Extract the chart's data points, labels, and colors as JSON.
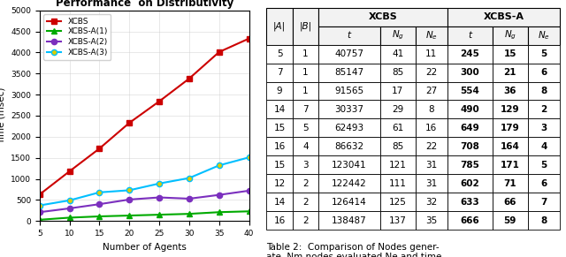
{
  "chart_title": "Performance  on Distributivity",
  "xlabel": "Number of Agents",
  "ylabel": "Time (msec)",
  "xlim": [
    5,
    40
  ],
  "ylim": [
    0,
    5000
  ],
  "yticks": [
    0,
    500,
    1000,
    1500,
    2000,
    2500,
    3000,
    3500,
    4000,
    4500,
    5000
  ],
  "xticks": [
    5,
    10,
    15,
    20,
    25,
    30,
    35,
    40
  ],
  "series": [
    {
      "label": "XCBS",
      "color": "#cc0000",
      "marker": "s",
      "markerfacecolor": "#cc0000",
      "x": [
        5,
        10,
        15,
        20,
        25,
        30,
        35,
        40
      ],
      "y": [
        630,
        1180,
        1720,
        2330,
        2840,
        3380,
        4010,
        4330
      ]
    },
    {
      "label": "XCBS-A(1)",
      "color": "#00aa00",
      "marker": "^",
      "markerfacecolor": "#00aa00",
      "x": [
        5,
        10,
        15,
        20,
        25,
        30,
        35,
        40
      ],
      "y": [
        30,
        80,
        110,
        130,
        150,
        170,
        210,
        230
      ]
    },
    {
      "label": "XCBS-A(2)",
      "color": "#7B2FBE",
      "marker": "o",
      "markerfacecolor": "#7B2FBE",
      "x": [
        5,
        10,
        15,
        20,
        25,
        30,
        35,
        40
      ],
      "y": [
        210,
        300,
        400,
        510,
        560,
        530,
        620,
        720
      ]
    },
    {
      "label": "XCBS-A(3)",
      "color": "#00bfff",
      "marker": "o",
      "markerfacecolor": "#ddcc00",
      "x": [
        5,
        10,
        15,
        20,
        25,
        30,
        35,
        40
      ],
      "y": [
        370,
        490,
        680,
        730,
        890,
        1020,
        1320,
        1510
      ]
    }
  ],
  "table_caption": "Table 2:  Comparison of Nodes gener-\nate  Nm nodes evaluated Ne and time",
  "col_widths": [
    0.055,
    0.055,
    0.13,
    0.075,
    0.068,
    0.095,
    0.075,
    0.068
  ],
  "col_labels_sub": [
    "|A|",
    "|B|",
    "t",
    "Ng",
    "Ne",
    "t",
    "Ng",
    "Ne"
  ],
  "table_data": [
    [
      5,
      1,
      40757,
      41,
      11,
      245,
      15,
      5
    ],
    [
      7,
      1,
      85147,
      85,
      22,
      300,
      21,
      6
    ],
    [
      9,
      1,
      91565,
      17,
      27,
      554,
      36,
      8
    ],
    [
      14,
      7,
      30337,
      29,
      8,
      490,
      129,
      2
    ],
    [
      15,
      5,
      62493,
      61,
      16,
      649,
      179,
      3
    ],
    [
      16,
      4,
      86632,
      85,
      22,
      708,
      164,
      4
    ],
    [
      15,
      3,
      123041,
      121,
      31,
      785,
      171,
      5
    ],
    [
      12,
      2,
      122442,
      111,
      31,
      602,
      71,
      6
    ],
    [
      14,
      2,
      126414,
      125,
      32,
      633,
      66,
      7
    ],
    [
      16,
      2,
      138487,
      137,
      35,
      666,
      59,
      8
    ]
  ]
}
